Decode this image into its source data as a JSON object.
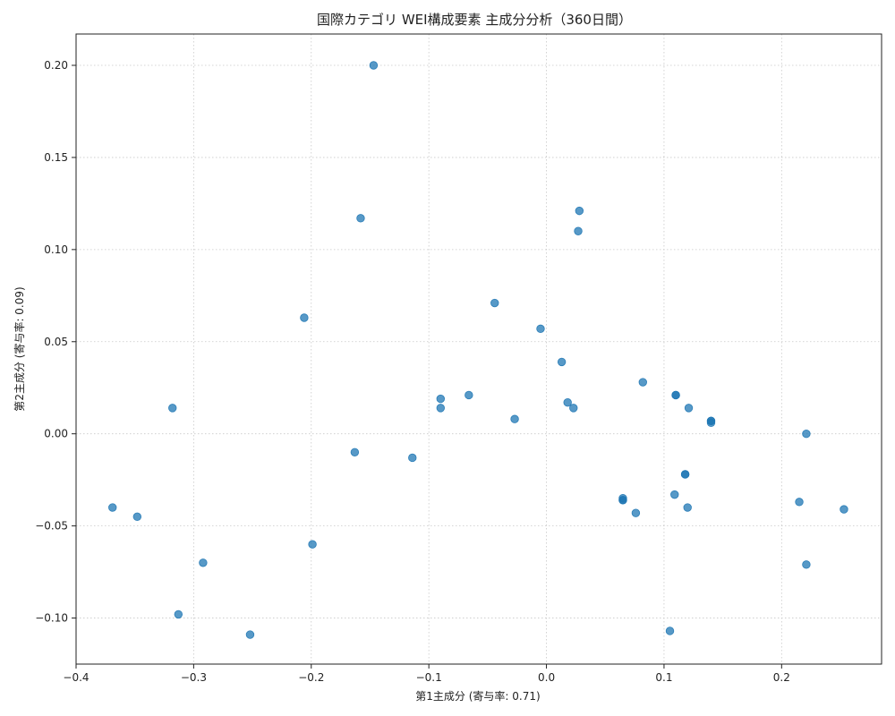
{
  "chart_data": {
    "type": "scatter",
    "title": "国際カテゴリ WEI構成要素 主成分分析（360日間）",
    "xlabel": "第1主成分 (寄与率: 0.71)",
    "ylabel": "第2主成分 (寄与率: 0.09)",
    "xlim": [
      -0.4,
      0.285
    ],
    "ylim": [
      -0.125,
      0.217
    ],
    "xticks": [
      -0.4,
      -0.3,
      -0.2,
      -0.1,
      0.0,
      0.1,
      0.2
    ],
    "xtick_labels": [
      "−0.4",
      "−0.3",
      "−0.2",
      "−0.1",
      "0.0",
      "0.1",
      "0.2"
    ],
    "yticks": [
      -0.1,
      -0.05,
      0.0,
      0.05,
      0.1,
      0.15,
      0.2
    ],
    "ytick_labels": [
      "−0.10",
      "−0.05",
      "0.00",
      "0.05",
      "0.10",
      "0.15",
      "0.20"
    ],
    "grid": true,
    "legend": "none",
    "point_color": "#1f77b4",
    "point_opacity": 0.75,
    "points": [
      {
        "x": -0.147,
        "y": 0.2
      },
      {
        "x": -0.158,
        "y": 0.117
      },
      {
        "x": 0.028,
        "y": 0.121
      },
      {
        "x": 0.027,
        "y": 0.11
      },
      {
        "x": -0.044,
        "y": 0.071
      },
      {
        "x": -0.206,
        "y": 0.063
      },
      {
        "x": -0.005,
        "y": 0.057
      },
      {
        "x": 0.013,
        "y": 0.039
      },
      {
        "x": 0.082,
        "y": 0.028
      },
      {
        "x": -0.066,
        "y": 0.021
      },
      {
        "x": 0.11,
        "y": 0.021
      },
      {
        "x": 0.11,
        "y": 0.021
      },
      {
        "x": -0.09,
        "y": 0.019
      },
      {
        "x": 0.018,
        "y": 0.017
      },
      {
        "x": -0.09,
        "y": 0.014
      },
      {
        "x": 0.023,
        "y": 0.014
      },
      {
        "x": 0.121,
        "y": 0.014
      },
      {
        "x": -0.318,
        "y": 0.014
      },
      {
        "x": -0.027,
        "y": 0.008
      },
      {
        "x": 0.14,
        "y": 0.007
      },
      {
        "x": 0.14,
        "y": 0.007
      },
      {
        "x": 0.14,
        "y": 0.006
      },
      {
        "x": 0.221,
        "y": 0.0
      },
      {
        "x": -0.163,
        "y": -0.01
      },
      {
        "x": -0.114,
        "y": -0.013
      },
      {
        "x": 0.118,
        "y": -0.022
      },
      {
        "x": 0.118,
        "y": -0.022
      },
      {
        "x": 0.109,
        "y": -0.033
      },
      {
        "x": 0.065,
        "y": -0.036
      },
      {
        "x": 0.065,
        "y": -0.036
      },
      {
        "x": 0.065,
        "y": -0.035
      },
      {
        "x": 0.215,
        "y": -0.037
      },
      {
        "x": 0.12,
        "y": -0.04
      },
      {
        "x": -0.369,
        "y": -0.04
      },
      {
        "x": 0.253,
        "y": -0.041
      },
      {
        "x": 0.076,
        "y": -0.043
      },
      {
        "x": -0.348,
        "y": -0.045
      },
      {
        "x": -0.199,
        "y": -0.06
      },
      {
        "x": -0.292,
        "y": -0.07
      },
      {
        "x": 0.221,
        "y": -0.071
      },
      {
        "x": -0.313,
        "y": -0.098
      },
      {
        "x": 0.105,
        "y": -0.107
      },
      {
        "x": -0.252,
        "y": -0.109
      }
    ]
  }
}
